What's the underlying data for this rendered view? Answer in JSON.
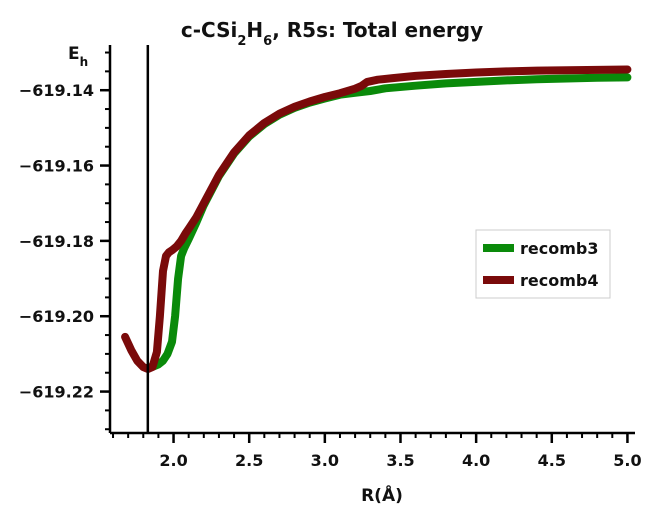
{
  "chart_data": {
    "type": "line",
    "title": "c-CSi2H6, R5s: Total energy",
    "title_parts": {
      "prefix": "c-CSi",
      "sub1": "2",
      "mid": "H",
      "sub2": "6",
      "suffix": ", R5s: Total energy"
    },
    "xlabel": "R(Å)",
    "ylabel": "E",
    "ylabel_sub": "h",
    "xlim": [
      1.58,
      5.05
    ],
    "ylim": [
      -619.231,
      -619.128
    ],
    "xticks": [
      2.0,
      2.5,
      3.0,
      3.5,
      4.0,
      4.5,
      5.0
    ],
    "xtick_labels": [
      "2.0",
      "2.5",
      "3.0",
      "3.5",
      "4.0",
      "4.5",
      "5.0"
    ],
    "x_minor_step": 0.1,
    "yticks": [
      -619.14,
      -619.16,
      -619.18,
      -619.2,
      -619.22
    ],
    "ytick_labels": [
      "−619.14",
      "−619.16",
      "−619.18",
      "−619.20",
      "−619.22"
    ],
    "y_minor_step": 0.005,
    "vline_x": 1.83,
    "legend": {
      "position": "center-right",
      "entries": [
        "recomb3",
        "recomb4"
      ]
    },
    "series": [
      {
        "name": "recomb3",
        "color": "#0a8a0a",
        "x": [
          1.83,
          1.87,
          1.9,
          1.93,
          1.96,
          1.99,
          2.01,
          2.03,
          2.05,
          2.07,
          2.1,
          2.15,
          2.2,
          2.3,
          2.4,
          2.5,
          2.6,
          2.7,
          2.8,
          2.9,
          3.0,
          3.1,
          3.2,
          3.3,
          3.4,
          3.6,
          3.8,
          4.0,
          4.2,
          4.4,
          4.6,
          4.8,
          5.0
        ],
        "y": [
          -619.2137,
          -619.2133,
          -619.2128,
          -619.2118,
          -619.21,
          -619.2068,
          -619.2,
          -619.19,
          -619.184,
          -619.182,
          -619.1795,
          -619.1752,
          -619.1705,
          -619.1628,
          -619.1568,
          -619.1523,
          -619.149,
          -619.1465,
          -619.1447,
          -619.1433,
          -619.1422,
          -619.1412,
          -619.1407,
          -619.1402,
          -619.1395,
          -619.1388,
          -619.1382,
          -619.1378,
          -619.1374,
          -619.1371,
          -619.1369,
          -619.1367,
          -619.1366
        ]
      },
      {
        "name": "recomb4",
        "color": "#7a0a0a",
        "x": [
          1.68,
          1.72,
          1.76,
          1.8,
          1.83,
          1.86,
          1.89,
          1.91,
          1.93,
          1.95,
          1.97,
          1.99,
          2.02,
          2.05,
          2.08,
          2.1,
          2.15,
          2.2,
          2.3,
          2.4,
          2.5,
          2.6,
          2.7,
          2.8,
          2.9,
          3.0,
          3.1,
          3.2,
          3.24,
          3.28,
          3.35,
          3.45,
          3.6,
          3.8,
          4.0,
          4.2,
          4.4,
          4.6,
          4.8,
          5.0
        ],
        "y": [
          -619.2055,
          -619.209,
          -619.2118,
          -619.2135,
          -619.214,
          -619.2135,
          -619.2095,
          -619.2,
          -619.188,
          -619.184,
          -619.183,
          -619.1825,
          -619.1815,
          -619.18,
          -619.178,
          -619.1768,
          -619.1738,
          -619.17,
          -619.1625,
          -619.1565,
          -619.152,
          -619.1487,
          -619.1462,
          -619.1444,
          -619.143,
          -619.1418,
          -619.1408,
          -619.1396,
          -619.1389,
          -619.1378,
          -619.1372,
          -619.1368,
          -619.1362,
          -619.1357,
          -619.1353,
          -619.135,
          -619.1348,
          -619.1347,
          -619.1346,
          -619.1345
        ]
      }
    ]
  }
}
